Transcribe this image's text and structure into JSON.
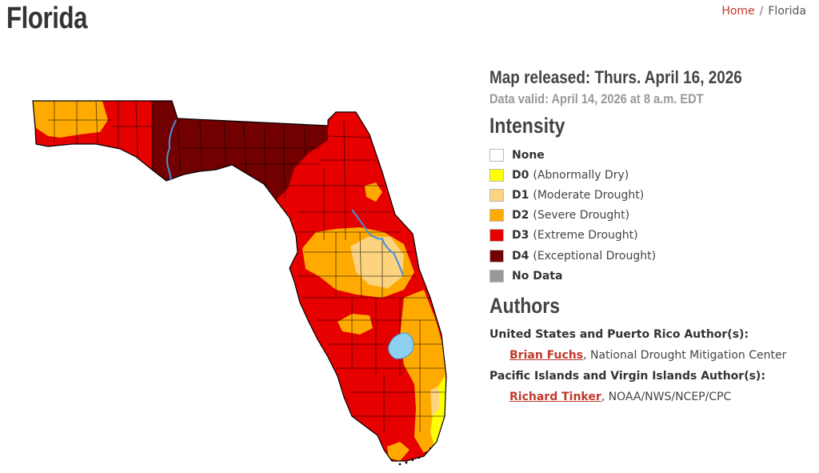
{
  "header": {
    "title": "Florida",
    "breadcrumb": {
      "home": "Home",
      "separator": "/",
      "current": "Florida"
    }
  },
  "map": {
    "region": "Florida",
    "colors": {
      "none": "#ffffff",
      "d0": "#ffff00",
      "d1": "#fcd37f",
      "d2": "#ffaa00",
      "d3": "#e60000",
      "d4": "#730000",
      "no_data": "#999999",
      "water": "#8fcfee",
      "county_lines": "#000000"
    }
  },
  "info": {
    "released": "Map released: Thurs. April 16, 2026",
    "valid": "Data valid: April 14, 2026 at 8 a.m. EDT"
  },
  "intensity": {
    "heading": "Intensity",
    "items": [
      {
        "code": "",
        "label": "None",
        "color": "#ffffff"
      },
      {
        "code": "D0",
        "label": "(Abnormally Dry)",
        "color": "#ffff00"
      },
      {
        "code": "D1",
        "label": "(Moderate Drought)",
        "color": "#fcd37f"
      },
      {
        "code": "D2",
        "label": "(Severe Drought)",
        "color": "#ffaa00"
      },
      {
        "code": "D3",
        "label": "(Extreme Drought)",
        "color": "#e60000"
      },
      {
        "code": "D4",
        "label": "(Exceptional Drought)",
        "color": "#730000"
      },
      {
        "code": "",
        "label": "No Data",
        "color": "#999999"
      }
    ]
  },
  "authors": {
    "heading": "Authors",
    "groups": [
      {
        "role": "United States and Puerto Rico Author(s):",
        "name": "Brian Fuchs",
        "org": ", National Drought Mitigation Center"
      },
      {
        "role": "Pacific Islands and Virgin Islands Author(s):",
        "name": "Richard Tinker",
        "org": ", NOAA/NWS/NCEP/CPC"
      }
    ]
  }
}
